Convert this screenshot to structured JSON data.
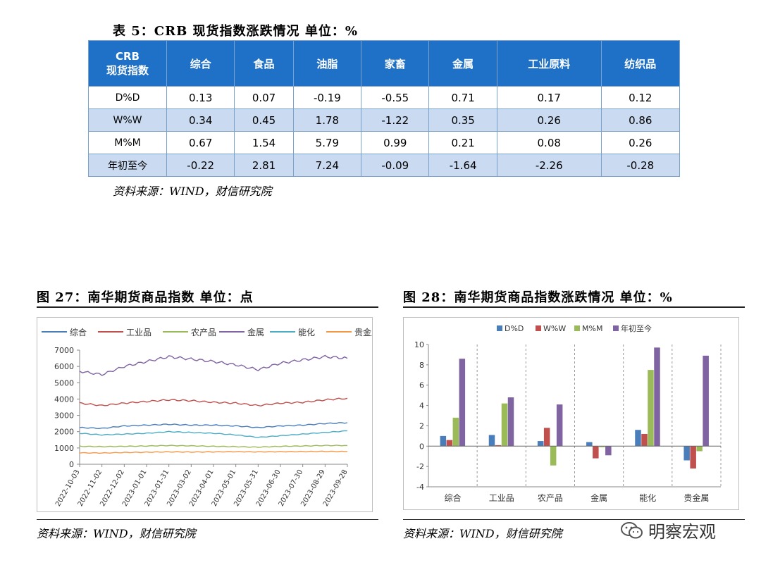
{
  "table5": {
    "title": "表 5：CRB 现货指数涨跌情况 单位：%",
    "header_line1": "CRB",
    "header_line2": "现货指数",
    "columns": [
      "综合",
      "食品",
      "油脂",
      "家畜",
      "金属",
      "工业原料",
      "纺织品"
    ],
    "rows": [
      {
        "label": "D%D",
        "values": [
          "0.13",
          "0.07",
          "-0.19",
          "-0.55",
          "0.71",
          "0.17",
          "0.12"
        ]
      },
      {
        "label": "W%W",
        "values": [
          "0.34",
          "0.45",
          "1.78",
          "-1.22",
          "0.35",
          "0.26",
          "0.86"
        ]
      },
      {
        "label": "M%M",
        "values": [
          "0.67",
          "1.54",
          "5.79",
          "0.99",
          "0.21",
          "0.08",
          "0.26"
        ]
      },
      {
        "label": "年初至今",
        "values": [
          "-0.22",
          "2.81",
          "7.24",
          "-0.09",
          "-1.64",
          "-2.26",
          "-0.28"
        ]
      }
    ],
    "source": "资料来源：WIND，财信研究院"
  },
  "fig27": {
    "title": "图 27：南华期货商品指数 单位：点",
    "source": "资料来源：WIND，财信研究院",
    "chart_data": {
      "type": "line",
      "ylim": [
        0,
        7000
      ],
      "yticks": [
        0,
        1000,
        2000,
        3000,
        4000,
        5000,
        6000,
        7000
      ],
      "x": [
        "2022-10-03",
        "2022-11-02",
        "2022-12-02",
        "2023-01-01",
        "2023-01-31",
        "2023-03-02",
        "2023-04-01",
        "2023-05-01",
        "2023-05-31",
        "2023-06-30",
        "2023-07-30",
        "2023-08-29",
        "2023-09-28"
      ],
      "series": [
        {
          "name": "综合",
          "color": "#4a7ebb",
          "values": [
            2250,
            2200,
            2350,
            2400,
            2450,
            2400,
            2400,
            2350,
            2250,
            2350,
            2400,
            2500,
            2550
          ]
        },
        {
          "name": "工业品",
          "color": "#c0504d",
          "values": [
            3750,
            3600,
            3750,
            3850,
            3950,
            3900,
            3800,
            3750,
            3600,
            3750,
            3800,
            3950,
            4050
          ]
        },
        {
          "name": "农产品",
          "color": "#9bbb59",
          "values": [
            1100,
            1080,
            1100,
            1120,
            1150,
            1130,
            1100,
            1080,
            1050,
            1100,
            1120,
            1150,
            1150
          ]
        },
        {
          "name": "金属",
          "color": "#8064a2",
          "values": [
            5700,
            5500,
            6000,
            6300,
            6600,
            6450,
            6300,
            6100,
            5800,
            6200,
            6400,
            6600,
            6500
          ]
        },
        {
          "name": "能化",
          "color": "#4bacc6",
          "values": [
            1900,
            1800,
            1850,
            1900,
            2000,
            1950,
            1900,
            1800,
            1650,
            1750,
            1850,
            1950,
            2050
          ]
        },
        {
          "name": "贵金属",
          "color": "#f79646",
          "values": [
            700,
            690,
            720,
            740,
            760,
            750,
            760,
            770,
            760,
            770,
            780,
            790,
            780
          ]
        }
      ]
    }
  },
  "fig28": {
    "title": "图 28：南华期货商品指数涨跌情况 单位：%",
    "source": "资料来源：WIND，财信研究院",
    "chart_data": {
      "type": "bar",
      "ylim": [
        -4,
        10
      ],
      "yticks": [
        -4,
        -2,
        0,
        2,
        4,
        6,
        8,
        10
      ],
      "categories": [
        "综合",
        "工业品",
        "农产品",
        "金属",
        "能化",
        "贵金属"
      ],
      "series": [
        {
          "name": "D%D",
          "color": "#4a7ebb",
          "values": [
            1.0,
            1.1,
            0.5,
            0.4,
            1.6,
            -1.4
          ]
        },
        {
          "name": "W%W",
          "color": "#c0504d",
          "values": [
            0.6,
            0.1,
            1.8,
            -1.2,
            1.2,
            -2.2
          ]
        },
        {
          "name": "M%M",
          "color": "#9bbb59",
          "values": [
            2.8,
            4.2,
            -1.9,
            -0.1,
            7.5,
            -0.5
          ]
        },
        {
          "name": "年初至今",
          "color": "#8064a2",
          "values": [
            8.6,
            4.8,
            4.1,
            -0.9,
            9.7,
            8.9
          ]
        }
      ]
    }
  },
  "watermark": {
    "text": "明察宏观",
    "icon": "wechat-icon"
  }
}
